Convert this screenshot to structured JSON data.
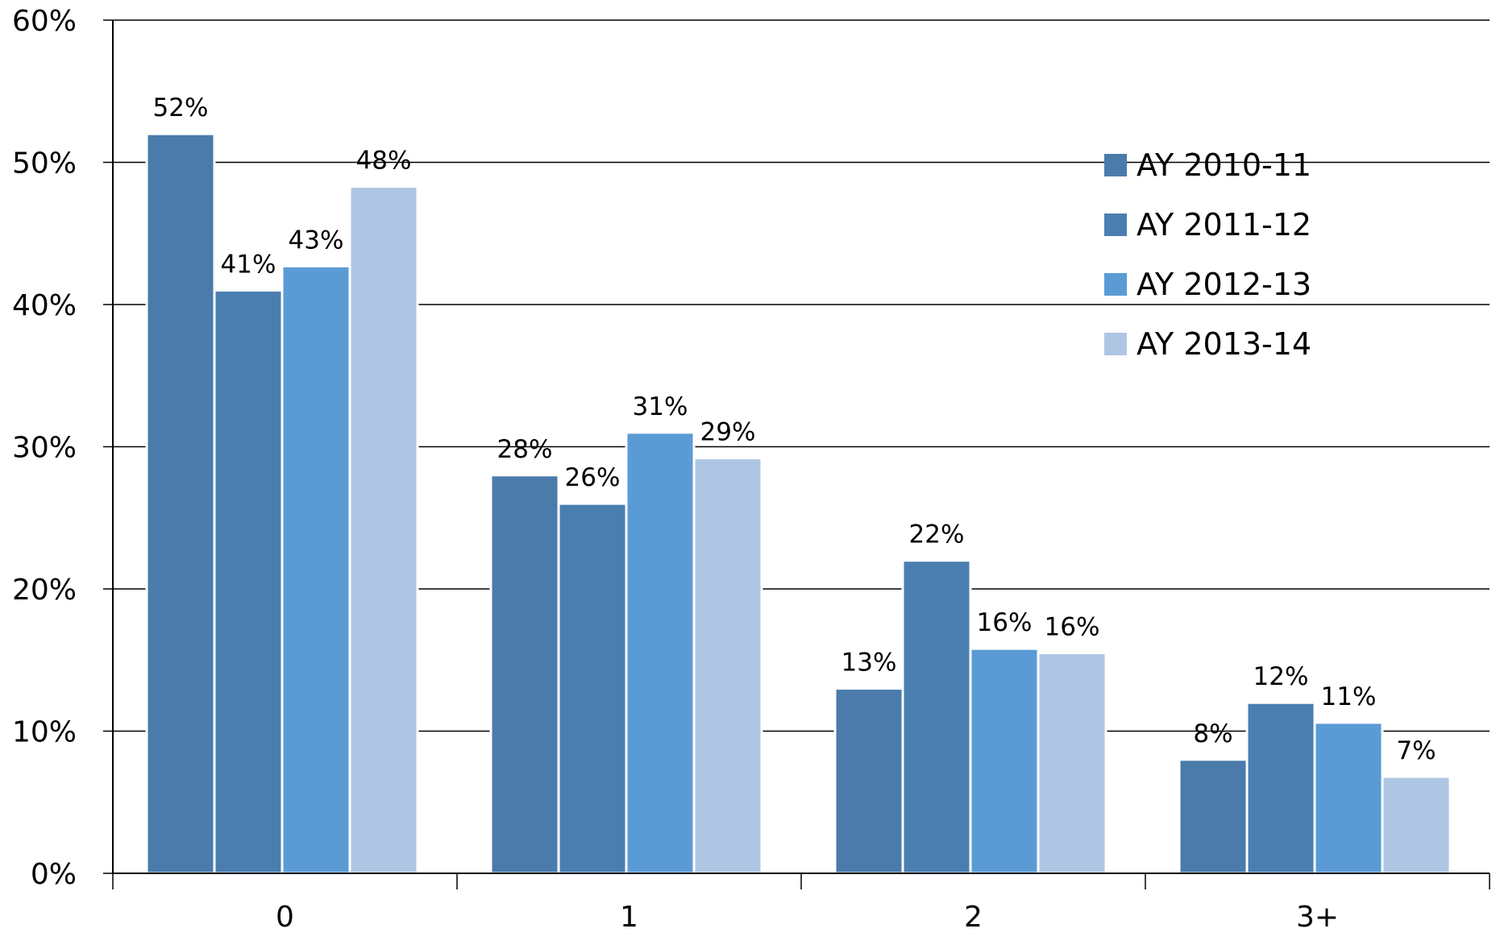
{
  "chart_data": {
    "type": "bar",
    "categories": [
      "0",
      "1",
      "2",
      "3+"
    ],
    "series": [
      {
        "name": "AY 2010-11",
        "values": [
          52,
          28,
          13,
          8
        ],
        "labels": [
          "52%",
          "28%",
          "13%",
          "8%"
        ],
        "color": "#4A7BAA"
      },
      {
        "name": "AY 2011-12",
        "values": [
          41,
          26,
          22,
          12
        ],
        "labels": [
          "41%",
          "26%",
          "22%",
          "12%"
        ],
        "color": "#4A7EB0"
      },
      {
        "name": "AY 2012-13",
        "values": [
          42.7,
          31,
          15.8,
          10.6
        ],
        "labels": [
          "43%",
          "31%",
          "16%",
          "11%"
        ],
        "color": "#5B9BD5"
      },
      {
        "name": "AY 2013-14",
        "values": [
          48.3,
          29.2,
          15.5,
          6.8
        ],
        "labels": [
          "48%",
          "29%",
          "16%",
          "7%"
        ],
        "color": "#AEC6E4"
      }
    ],
    "ylim": [
      0,
      60
    ],
    "yticks": [
      0,
      10,
      20,
      30,
      40,
      50,
      60
    ],
    "ytick_labels": [
      "0%",
      "10%",
      "20%",
      "30%",
      "40%",
      "50%",
      "60%"
    ],
    "grid": true,
    "legend": "top-right",
    "title": "",
    "xlabel": "",
    "ylabel": ""
  }
}
